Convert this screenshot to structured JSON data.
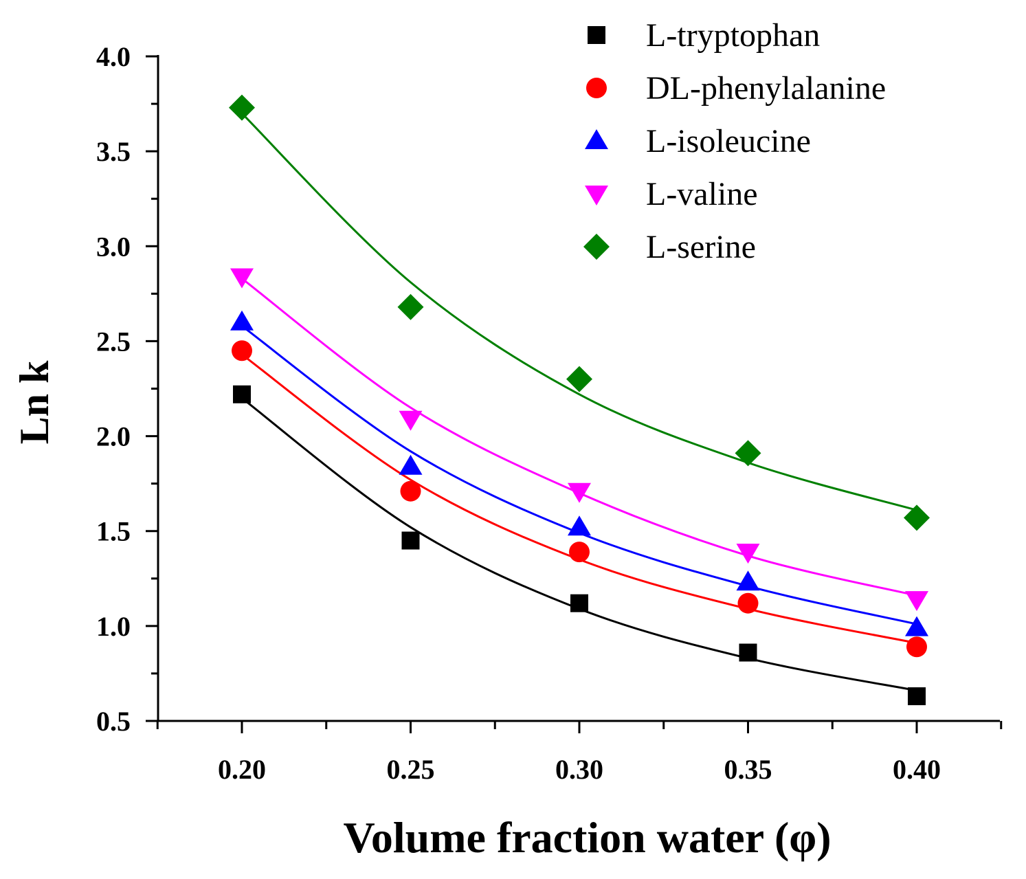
{
  "chart_data": {
    "type": "scatter",
    "title": "",
    "xlabel": "Volume fraction water (φ)",
    "ylabel": "Ln k",
    "xlim": [
      0.175,
      0.425
    ],
    "ylim": [
      0.5,
      4.0
    ],
    "xticks": [
      0.2,
      0.25,
      0.3,
      0.35,
      0.4
    ],
    "xtick_labels": [
      "0.20",
      "0.25",
      "0.30",
      "0.35",
      "0.40"
    ],
    "xminor_ticks": [
      0.175,
      0.225,
      0.275,
      0.325,
      0.375,
      0.425
    ],
    "yticks": [
      0.5,
      1.0,
      1.5,
      2.0,
      2.5,
      3.0,
      3.5,
      4.0
    ],
    "ytick_labels": [
      "0.5",
      "1.0",
      "1.5",
      "2.0",
      "2.5",
      "3.0",
      "3.5",
      "4.0"
    ],
    "yminor_ticks": [
      0.75,
      1.25,
      1.75,
      2.25,
      2.75,
      3.25,
      3.75
    ],
    "grid": false,
    "legend_position": "top-right",
    "x": [
      0.2,
      0.25,
      0.3,
      0.35,
      0.4
    ],
    "series": [
      {
        "name": "L-tryptophan",
        "marker": "square",
        "color": "#000000",
        "values": [
          2.22,
          1.45,
          1.12,
          0.86,
          0.63
        ],
        "fit": [
          2.2,
          1.52,
          1.09,
          0.83,
          0.66
        ]
      },
      {
        "name": "DL-phenylalanine",
        "marker": "circle",
        "color": "#ff0000",
        "values": [
          2.45,
          1.71,
          1.39,
          1.12,
          0.89
        ],
        "fit": [
          2.43,
          1.77,
          1.35,
          1.09,
          0.91
        ]
      },
      {
        "name": "L-isoleucine",
        "marker": "triangle-up",
        "color": "#0000ff",
        "values": [
          2.6,
          1.84,
          1.52,
          1.23,
          0.99
        ],
        "fit": [
          2.58,
          1.92,
          1.49,
          1.21,
          1.01
        ]
      },
      {
        "name": "L-valine",
        "marker": "triangle-down",
        "color": "#ff00ff",
        "values": [
          2.84,
          2.09,
          1.71,
          1.39,
          1.14
        ],
        "fit": [
          2.83,
          2.15,
          1.7,
          1.37,
          1.16
        ]
      },
      {
        "name": " L-serine",
        "marker": "diamond",
        "color": "#008000",
        "values": [
          3.73,
          2.68,
          2.3,
          1.91,
          1.57
        ],
        "fit": [
          3.7,
          2.81,
          2.22,
          1.86,
          1.61
        ]
      }
    ]
  }
}
